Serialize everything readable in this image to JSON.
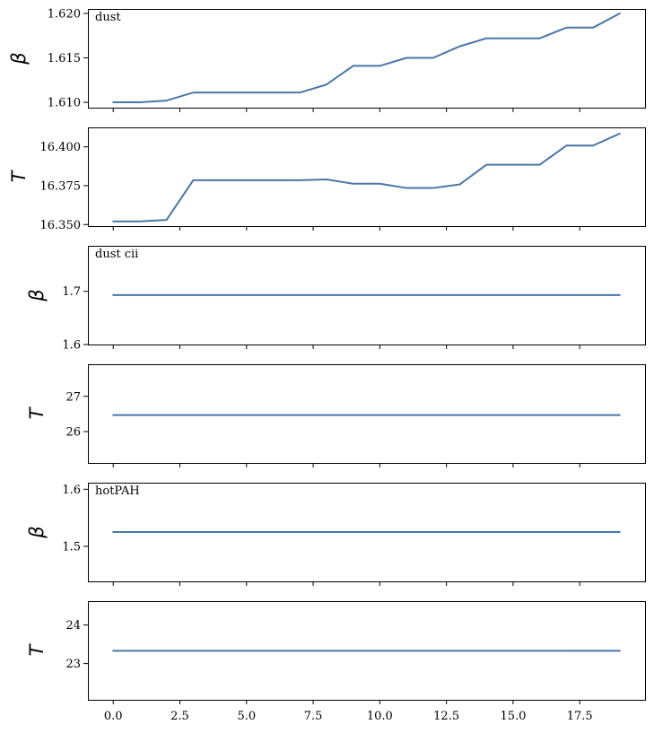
{
  "colors": {
    "series": "#4a76a8"
  },
  "chart_data": [
    {
      "type": "line",
      "panel_text": "dust",
      "ylabel": "β",
      "x": [
        0,
        1,
        2,
        3,
        4,
        5,
        6,
        7,
        8,
        9,
        10,
        11,
        12,
        13,
        14,
        15,
        16,
        17,
        18,
        19
      ],
      "series": [
        {
          "values": [
            1.61,
            1.61,
            1.6102,
            1.6111,
            1.6111,
            1.6111,
            1.6111,
            1.6111,
            1.612,
            1.6141,
            1.6141,
            1.615,
            1.615,
            1.6163,
            1.6172,
            1.6172,
            1.6172,
            1.6184,
            1.6184,
            1.62
          ]
        }
      ],
      "xlim": [
        -0.95,
        19.95
      ],
      "ylim": [
        1.6094,
        1.6205
      ],
      "yticks": [
        1.61,
        1.615,
        1.62
      ],
      "ytick_labels": [
        "1.610",
        "1.615",
        "1.620"
      ]
    },
    {
      "type": "line",
      "panel_text": "",
      "ylabel": "T",
      "x": [
        0,
        1,
        2,
        3,
        4,
        5,
        6,
        7,
        8,
        9,
        10,
        11,
        12,
        13,
        14,
        15,
        16,
        17,
        18,
        19
      ],
      "series": [
        {
          "values": [
            16.352,
            16.352,
            16.353,
            16.3785,
            16.3785,
            16.3785,
            16.3785,
            16.3785,
            16.379,
            16.3763,
            16.3763,
            16.3735,
            16.3735,
            16.3758,
            16.3885,
            16.3885,
            16.3885,
            16.4008,
            16.4008,
            16.4085
          ]
        }
      ],
      "xlim": [
        -0.95,
        19.95
      ],
      "ylim": [
        16.349,
        16.4125
      ],
      "yticks": [
        16.35,
        16.375,
        16.4
      ],
      "ytick_labels": [
        "16.350",
        "16.375",
        "16.400"
      ]
    },
    {
      "type": "line",
      "panel_text": "dust cii",
      "ylabel": "β",
      "x": [
        0,
        1,
        2,
        3,
        4,
        5,
        6,
        7,
        8,
        9,
        10,
        11,
        12,
        13,
        14,
        15,
        16,
        17,
        18,
        19
      ],
      "series": [
        {
          "values": [
            1.693,
            1.693,
            1.693,
            1.693,
            1.693,
            1.693,
            1.693,
            1.693,
            1.693,
            1.693,
            1.693,
            1.693,
            1.693,
            1.693,
            1.693,
            1.693,
            1.693,
            1.693,
            1.693,
            1.693
          ]
        }
      ],
      "xlim": [
        -0.95,
        19.95
      ],
      "ylim": [
        1.6,
        1.7855
      ],
      "yticks": [
        1.6,
        1.7
      ],
      "ytick_labels": [
        "1.6",
        "1.7"
      ]
    },
    {
      "type": "line",
      "panel_text": "",
      "ylabel": "T",
      "x": [
        0,
        1,
        2,
        3,
        4,
        5,
        6,
        7,
        8,
        9,
        10,
        11,
        12,
        13,
        14,
        15,
        16,
        17,
        18,
        19
      ],
      "series": [
        {
          "values": [
            26.47,
            26.47,
            26.47,
            26.47,
            26.47,
            26.47,
            26.47,
            26.47,
            26.47,
            26.47,
            26.47,
            26.47,
            26.47,
            26.47,
            26.47,
            26.47,
            26.47,
            26.47,
            26.47,
            26.47
          ]
        }
      ],
      "xlim": [
        -0.95,
        19.95
      ],
      "ylim": [
        25.11,
        27.91
      ],
      "yticks": [
        26,
        27
      ],
      "ytick_labels": [
        "26",
        "27"
      ]
    },
    {
      "type": "line",
      "panel_text": "hotPAH",
      "ylabel": "β",
      "x": [
        0,
        1,
        2,
        3,
        4,
        5,
        6,
        7,
        8,
        9,
        10,
        11,
        12,
        13,
        14,
        15,
        16,
        17,
        18,
        19
      ],
      "series": [
        {
          "values": [
            1.525,
            1.525,
            1.525,
            1.525,
            1.525,
            1.525,
            1.525,
            1.525,
            1.525,
            1.525,
            1.525,
            1.525,
            1.525,
            1.525,
            1.525,
            1.525,
            1.525,
            1.525,
            1.525,
            1.525
          ]
        }
      ],
      "xlim": [
        -0.95,
        19.95
      ],
      "ylim": [
        1.4386,
        1.6115
      ],
      "yticks": [
        1.5,
        1.6
      ],
      "ytick_labels": [
        "1.5",
        "1.6"
      ]
    },
    {
      "type": "line",
      "panel_text": "",
      "ylabel": "T",
      "x": [
        0,
        1,
        2,
        3,
        4,
        5,
        6,
        7,
        8,
        9,
        10,
        11,
        12,
        13,
        14,
        15,
        16,
        17,
        18,
        19
      ],
      "series": [
        {
          "values": [
            23.33,
            23.33,
            23.33,
            23.33,
            23.33,
            23.33,
            23.33,
            23.33,
            23.33,
            23.33,
            23.33,
            23.33,
            23.33,
            23.33,
            23.33,
            23.33,
            23.33,
            23.33,
            23.33,
            23.33
          ]
        }
      ],
      "xlim": [
        -0.95,
        19.95
      ],
      "ylim": [
        22.06,
        24.62
      ],
      "yticks": [
        23,
        24
      ],
      "ytick_labels": [
        "23",
        "24"
      ],
      "xticks": [
        0,
        2.5,
        5,
        7.5,
        10,
        12.5,
        15,
        17.5
      ],
      "xtick_labels": [
        "0.0",
        "2.5",
        "5.0",
        "7.5",
        "10.0",
        "12.5",
        "15.0",
        "17.5"
      ]
    }
  ]
}
